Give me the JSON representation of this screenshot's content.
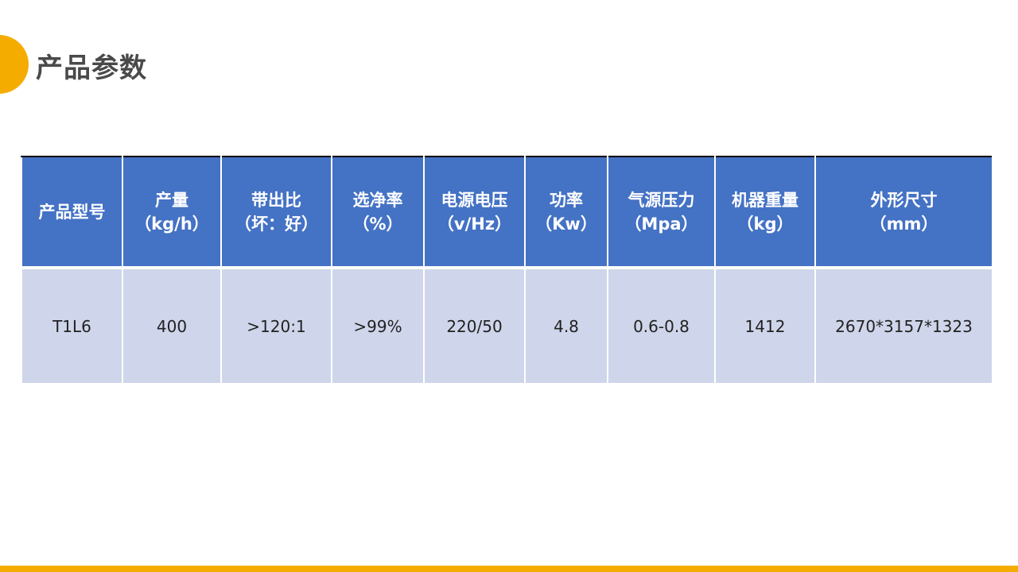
{
  "title": "产品参数",
  "colors": {
    "accent": "#f5ac00",
    "header_bg": "#4472c4",
    "row_bg": "#cfd5ea"
  },
  "table": {
    "headers": [
      {
        "line1": "产品型号",
        "line2": ""
      },
      {
        "line1": "产量",
        "line2": "（kg/h）"
      },
      {
        "line1": "带出比",
        "line2": "（坏：好）"
      },
      {
        "line1": "选净率",
        "line2": "（%）"
      },
      {
        "line1": "电源电压",
        "line2": "（v/Hz）"
      },
      {
        "line1": "功率",
        "line2": "（Kw）"
      },
      {
        "line1": "气源压力",
        "line2": "（Mpa）"
      },
      {
        "line1": "机器重量",
        "line2": "（kg）"
      },
      {
        "line1": "外形尺寸",
        "line2": "（mm）"
      }
    ],
    "rows": [
      [
        "T1L6",
        "400",
        ">120:1",
        ">99%",
        "220/50",
        "4.8",
        "0.6-0.8",
        "1412",
        "2670*3157*1323"
      ]
    ]
  }
}
